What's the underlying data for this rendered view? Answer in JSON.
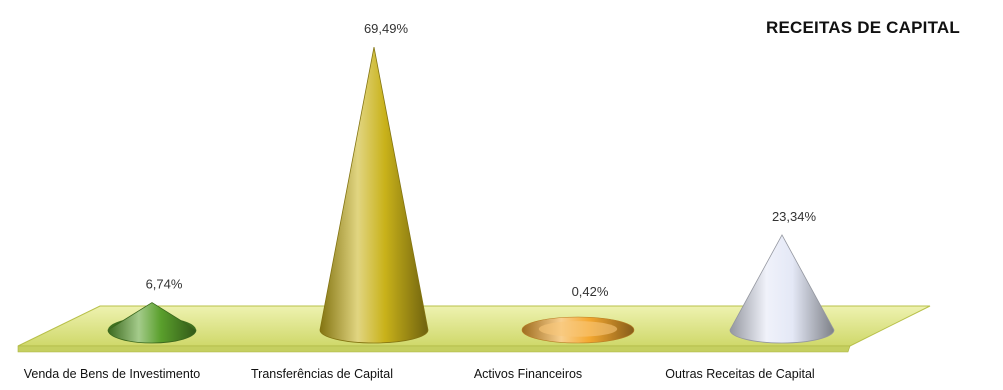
{
  "chart_data": {
    "type": "bar",
    "shape": "cone",
    "title": "RECEITAS DE CAPITAL",
    "xlabel": "",
    "ylabel": "",
    "legend": "none",
    "grid": false,
    "ylim": [
      0,
      70
    ],
    "categories": [
      "Venda de Bens de Investimento",
      "Transferências de Capital",
      "Activos Financeiros",
      "Outras Receitas de Capital"
    ],
    "values": [
      6.74,
      69.49,
      0.42,
      23.34
    ],
    "value_labels": [
      "6,74%",
      "69,49%",
      "0,42%",
      "23,34%"
    ],
    "colors": [
      "#5aa02c",
      "#c9b21a",
      "#f4a830",
      "#e4e8f6"
    ],
    "floor_color": "#dfe58a"
  }
}
